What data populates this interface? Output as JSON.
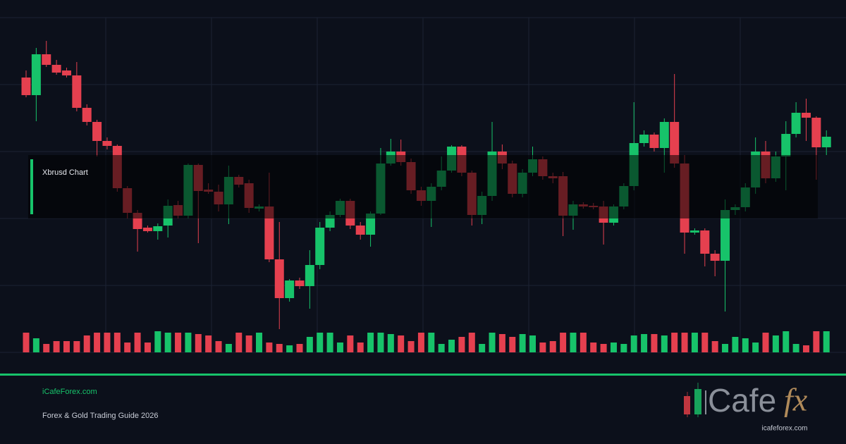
{
  "chart_data": {
    "type": "candlestick",
    "title": "Xbrusd Chart",
    "open": [
      390,
      365,
      423,
      408,
      400,
      393,
      347,
      327,
      300,
      293,
      233,
      198,
      177,
      172,
      180,
      209,
      194,
      266,
      231,
      228,
      210,
      249,
      240,
      204,
      207,
      132,
      77,
      102,
      94,
      124,
      177,
      195,
      215,
      180,
      167,
      197,
      268,
      285,
      270,
      230,
      215,
      235,
      258,
      292,
      255,
      195,
      222,
      285,
      268,
      225,
      255,
      274,
      250,
      250,
      194,
      210,
      208,
      207,
      184,
      207,
      236,
      297,
      309,
      290,
      327,
      268,
      170,
      173,
      140,
      130,
      202,
      206,
      234,
      285,
      247,
      278,
      310,
      340,
      333,
      291
    ],
    "high": [
      400,
      432,
      442,
      415,
      404,
      412,
      352,
      330,
      305,
      295,
      236,
      202,
      180,
      183,
      217,
      215,
      268,
      268,
      240,
      238,
      265,
      252,
      245,
      210,
      255,
      185,
      104,
      106,
      145,
      185,
      200,
      218,
      218,
      185,
      200,
      290,
      303,
      302,
      275,
      235,
      240,
      278,
      294,
      294,
      258,
      228,
      327,
      295,
      272,
      260,
      292,
      278,
      255,
      256,
      215,
      213,
      212,
      215,
      210,
      240,
      355,
      315,
      312,
      332,
      395,
      280,
      176,
      176,
      145,
      217,
      210,
      240,
      305,
      300,
      285,
      328,
      355,
      360,
      335,
      315
    ],
    "low": [
      362,
      328,
      405,
      394,
      390,
      342,
      322,
      278,
      288,
      228,
      190,
      143,
      170,
      160,
      163,
      190,
      190,
      155,
      225,
      200,
      182,
      234,
      198,
      200,
      128,
      33,
      72,
      90,
      62,
      118,
      172,
      192,
      175,
      160,
      150,
      195,
      265,
      265,
      225,
      208,
      178,
      230,
      255,
      250,
      180,
      182,
      215,
      260,
      220,
      220,
      250,
      245,
      240,
      165,
      174,
      204,
      203,
      153,
      180,
      203,
      230,
      292,
      285,
      255,
      262,
      140,
      167,
      122,
      108,
      58,
      195,
      200,
      225,
      240,
      242,
      230,
      305,
      300,
      245,
      280
    ],
    "close": [
      365,
      423,
      408,
      397,
      393,
      347,
      327,
      300,
      293,
      233,
      198,
      175,
      172,
      179,
      208,
      194,
      266,
      229,
      228,
      210,
      249,
      238,
      205,
      207,
      132,
      77,
      102,
      94,
      124,
      177,
      195,
      215,
      180,
      167,
      197,
      268,
      285,
      270,
      230,
      215,
      235,
      258,
      292,
      255,
      195,
      222,
      285,
      268,
      225,
      255,
      274,
      250,
      247,
      194,
      210,
      207,
      206,
      184,
      207,
      236,
      297,
      309,
      290,
      327,
      268,
      170,
      173,
      140,
      130,
      202,
      206,
      234,
      285,
      247,
      278,
      310,
      340,
      333,
      291,
      306
    ],
    "volume": [
      28,
      20,
      12,
      16,
      16,
      16,
      24,
      28,
      28,
      28,
      14,
      28,
      14,
      30,
      28,
      28,
      28,
      26,
      24,
      16,
      12,
      28,
      24,
      28,
      14,
      12,
      10,
      12,
      22,
      28,
      28,
      14,
      24,
      14,
      28,
      28,
      26,
      24,
      16,
      28,
      28,
      12,
      18,
      22,
      28,
      12,
      28,
      26,
      22,
      26,
      24,
      14,
      16,
      28,
      28,
      28,
      14,
      12,
      14,
      12,
      24,
      26,
      26,
      24,
      28,
      28,
      28,
      28,
      16,
      12,
      22,
      20,
      14,
      28,
      24,
      30,
      12,
      10,
      30,
      30
    ],
    "up_color": "#17c36a",
    "down_color": "#e5404f",
    "ylim": [
      0,
      475
    ],
    "yticks": [
      0,
      95,
      190,
      285,
      380,
      475
    ],
    "grid": true
  },
  "footer": {
    "site": "iCafeForex.com",
    "subtitle": "Forex & Gold Trading Guide 2026"
  },
  "logo": {
    "name": "Cafe",
    "accent": "fx",
    "url": "icafeforex.com"
  }
}
